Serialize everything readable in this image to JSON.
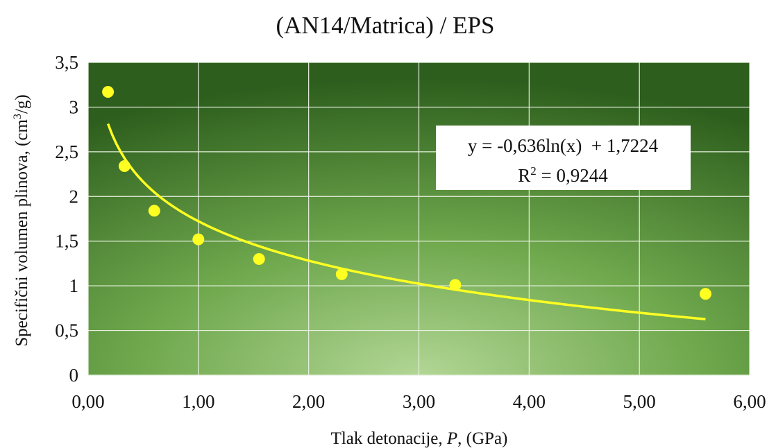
{
  "chart_data": {
    "type": "scatter",
    "title": "(AN14/Matrica) / EPS",
    "xlabel_prefix": "Tlak detonacije, ",
    "xlabel_var": "P",
    "xlabel_suffix": ", (GPa)",
    "ylabel_prefix": "Specifični volumen plinova, (cm",
    "ylabel_sup": "3",
    "ylabel_suffix": "/g)",
    "xlim": [
      0,
      6
    ],
    "ylim": [
      0,
      3.5
    ],
    "x_ticks": [
      "0,00",
      "1,00",
      "2,00",
      "3,00",
      "4,00",
      "5,00",
      "6,00"
    ],
    "y_ticks": [
      "0",
      "0,5",
      "1",
      "1,5",
      "2",
      "2,5",
      "3",
      "3,5"
    ],
    "grid": true,
    "series": [
      {
        "x": [
          0.18,
          0.33,
          0.6,
          1.0,
          1.55,
          2.3,
          3.33,
          5.6
        ],
        "y": [
          3.17,
          2.34,
          1.84,
          1.52,
          1.3,
          1.13,
          1.01,
          0.91
        ]
      }
    ],
    "trendline": {
      "type": "logarithmic",
      "coef": -0.636,
      "intercept": 1.7224,
      "x_range": [
        0.18,
        5.6
      ]
    },
    "annotation": {
      "line1": "y = -0,636ln(x)  + 1,7224",
      "line2_prefix": "R",
      "line2_sup": "2",
      "line2_suffix": " = 0,9244",
      "position": "upper-right"
    },
    "colors": {
      "plot_center": "#a8d08a",
      "plot_mid": "#6aa54a",
      "plot_edge": "#2b5d1c",
      "grid": "#e8f0e0",
      "points": "#ffff22",
      "trendline": "#ffff22",
      "annotation_bg": "#ffffff"
    }
  }
}
